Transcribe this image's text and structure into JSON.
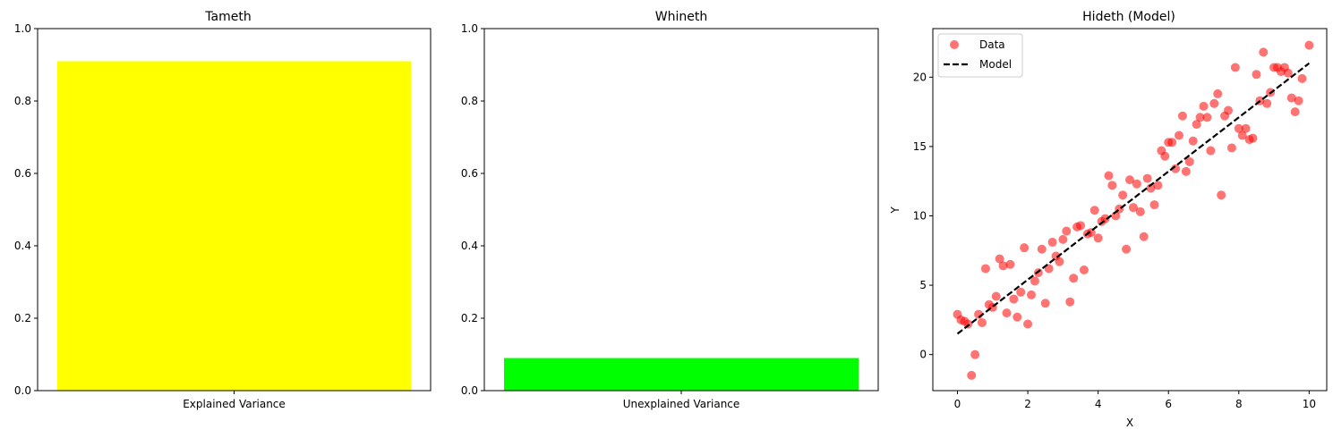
{
  "colors": {
    "panel1_bar": "#ffff00",
    "panel2_bar": "#00ff00",
    "scatter": "#ff0000",
    "model_line": "#000000"
  },
  "chart_data": [
    {
      "type": "bar",
      "title": "Tameth",
      "categories": [
        "Explained Variance"
      ],
      "values": [
        0.91
      ],
      "ylim": [
        0,
        1
      ],
      "yticks": [
        "0.0",
        "0.2",
        "0.4",
        "0.6",
        "0.8",
        "1.0"
      ],
      "color": "#ffff00"
    },
    {
      "type": "bar",
      "title": "Whineth",
      "categories": [
        "Unexplained Variance"
      ],
      "values": [
        0.09
      ],
      "ylim": [
        0,
        1
      ],
      "yticks": [
        "0.0",
        "0.2",
        "0.4",
        "0.6",
        "0.8",
        "1.0"
      ],
      "color": "#00ff00"
    },
    {
      "type": "scatter",
      "title": "Hideth (Model)",
      "xlabel": "X",
      "ylabel": "Y",
      "xlim": [
        -0.7,
        10.5
      ],
      "ylim": [
        -2.6,
        23.5
      ],
      "xticks": [
        "0",
        "2",
        "4",
        "6",
        "8",
        "10"
      ],
      "yticks": [
        "0",
        "5",
        "10",
        "15",
        "20"
      ],
      "legend": {
        "placement": "top-left",
        "entries": [
          "Data",
          "Model"
        ]
      },
      "series": [
        {
          "name": "Data",
          "kind": "points",
          "color": "#ff0000",
          "points": [
            [
              0.0,
              2.9
            ],
            [
              0.1,
              2.5
            ],
            [
              0.2,
              2.4
            ],
            [
              0.3,
              2.2
            ],
            [
              0.4,
              -1.5
            ],
            [
              0.5,
              0.0
            ],
            [
              0.6,
              2.9
            ],
            [
              0.7,
              2.3
            ],
            [
              0.8,
              6.2
            ],
            [
              0.9,
              3.6
            ],
            [
              1.0,
              3.4
            ],
            [
              1.1,
              4.2
            ],
            [
              1.2,
              6.9
            ],
            [
              1.3,
              6.4
            ],
            [
              1.4,
              3.0
            ],
            [
              1.5,
              6.5
            ],
            [
              1.6,
              4.0
            ],
            [
              1.7,
              2.7
            ],
            [
              1.8,
              4.5
            ],
            [
              1.9,
              7.7
            ],
            [
              2.0,
              2.2
            ],
            [
              2.1,
              4.3
            ],
            [
              2.2,
              5.3
            ],
            [
              2.3,
              5.9
            ],
            [
              2.4,
              7.6
            ],
            [
              2.5,
              3.7
            ],
            [
              2.6,
              6.2
            ],
            [
              2.7,
              8.1
            ],
            [
              2.8,
              7.1
            ],
            [
              2.9,
              6.7
            ],
            [
              3.0,
              8.3
            ],
            [
              3.1,
              8.9
            ],
            [
              3.2,
              3.8
            ],
            [
              3.3,
              5.5
            ],
            [
              3.4,
              9.2
            ],
            [
              3.5,
              9.3
            ],
            [
              3.6,
              6.1
            ],
            [
              3.7,
              8.7
            ],
            [
              3.8,
              8.8
            ],
            [
              3.9,
              10.4
            ],
            [
              4.0,
              8.4
            ],
            [
              4.1,
              9.6
            ],
            [
              4.2,
              9.8
            ],
            [
              4.3,
              12.9
            ],
            [
              4.4,
              12.2
            ],
            [
              4.5,
              10.0
            ],
            [
              4.6,
              10.5
            ],
            [
              4.7,
              11.5
            ],
            [
              4.8,
              7.6
            ],
            [
              4.9,
              12.6
            ],
            [
              5.0,
              10.6
            ],
            [
              5.1,
              12.3
            ],
            [
              5.2,
              10.3
            ],
            [
              5.3,
              8.5
            ],
            [
              5.4,
              12.7
            ],
            [
              5.5,
              12.0
            ],
            [
              5.6,
              10.8
            ],
            [
              5.7,
              12.2
            ],
            [
              5.8,
              14.7
            ],
            [
              5.9,
              14.3
            ],
            [
              6.0,
              15.3
            ],
            [
              6.1,
              15.3
            ],
            [
              6.2,
              13.4
            ],
            [
              6.3,
              15.8
            ],
            [
              6.4,
              17.2
            ],
            [
              6.5,
              13.2
            ],
            [
              6.6,
              13.9
            ],
            [
              6.7,
              15.4
            ],
            [
              6.8,
              16.6
            ],
            [
              6.9,
              17.1
            ],
            [
              7.0,
              17.9
            ],
            [
              7.1,
              17.1
            ],
            [
              7.2,
              14.7
            ],
            [
              7.3,
              18.1
            ],
            [
              7.4,
              18.8
            ],
            [
              7.5,
              11.5
            ],
            [
              7.6,
              17.2
            ],
            [
              7.7,
              17.6
            ],
            [
              7.8,
              14.9
            ],
            [
              7.9,
              20.7
            ],
            [
              8.0,
              16.3
            ],
            [
              8.1,
              15.8
            ],
            [
              8.2,
              16.3
            ],
            [
              8.3,
              15.5
            ],
            [
              8.4,
              15.6
            ],
            [
              8.5,
              20.2
            ],
            [
              8.6,
              18.3
            ],
            [
              8.7,
              21.8
            ],
            [
              8.8,
              18.1
            ],
            [
              8.9,
              18.9
            ],
            [
              9.0,
              20.7
            ],
            [
              9.1,
              20.7
            ],
            [
              9.2,
              20.4
            ],
            [
              9.3,
              20.7
            ],
            [
              9.4,
              20.3
            ],
            [
              9.5,
              18.5
            ],
            [
              9.6,
              17.5
            ],
            [
              9.7,
              18.3
            ],
            [
              9.8,
              19.9
            ],
            [
              10.0,
              22.3
            ]
          ]
        },
        {
          "name": "Model",
          "kind": "line",
          "style": "dashed",
          "color": "#000000",
          "points": [
            [
              0.0,
              1.5
            ],
            [
              10.0,
              21.0
            ]
          ]
        }
      ]
    }
  ]
}
